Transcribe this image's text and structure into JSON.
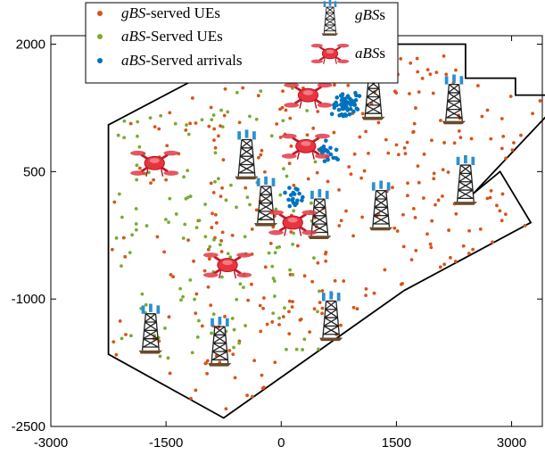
{
  "chart_data": {
    "type": "scatter",
    "title": "",
    "xlabel": "",
    "ylabel": "",
    "xlim": [
      -3000,
      3400
    ],
    "ylim": [
      -2500,
      2100
    ],
    "x_ticks": [
      -3000,
      -1500,
      0,
      1500,
      3000
    ],
    "y_ticks": [
      2000,
      500,
      -1000,
      -2500
    ],
    "tick_labels_x": [
      "-3000",
      "-1500",
      "0",
      "1500",
      "3000"
    ],
    "tick_labels_y": [
      "2000",
      "500",
      "-1000",
      "-2500"
    ],
    "grid": false,
    "legend_position": "top-left",
    "colors": {
      "gbs_served": "#d95319",
      "abs_served": "#77ac30",
      "abs_arrivals": "#0072bd",
      "region": "#000000"
    },
    "legend": [
      {
        "key": "gbs_ues",
        "prefix": "gBS",
        "suffix": "-served UEs",
        "marker": "dot",
        "color": "#d95319"
      },
      {
        "key": "abs_ues",
        "prefix": "aBS",
        "suffix": "-Served UEs",
        "marker": "dot",
        "color": "#77ac30"
      },
      {
        "key": "abs_arrivals",
        "prefix": "aBS",
        "suffix": "-Served arrivals",
        "marker": "dot",
        "color": "#0072bd"
      },
      {
        "key": "gbss",
        "prefix": "gBS",
        "suffix": "s",
        "marker": "tower-icon"
      },
      {
        "key": "abss",
        "prefix": "aBS",
        "suffix": "s",
        "marker": "drone-icon"
      }
    ],
    "region_polygon": [
      [
        -2250,
        1050
      ],
      [
        -1200,
        1550
      ],
      [
        -1050,
        2000
      ],
      [
        2400,
        2000
      ],
      [
        2400,
        1600
      ],
      [
        3050,
        1600
      ],
      [
        3050,
        1400
      ],
      [
        3450,
        1400
      ],
      [
        3450,
        1150
      ],
      [
        2500,
        240
      ],
      [
        2850,
        500
      ],
      [
        3250,
        -100
      ],
      [
        1600,
        -900
      ],
      [
        -750,
        -2400
      ],
      [
        -2250,
        -1650
      ]
    ],
    "gbs_towers": [
      [
        1200,
        1400
      ],
      [
        2250,
        1350
      ],
      [
        -450,
        700
      ],
      [
        -200,
        150
      ],
      [
        500,
        0
      ],
      [
        1300,
        100
      ],
      [
        2400,
        400
      ],
      [
        650,
        -1200
      ],
      [
        -1700,
        -1350
      ],
      [
        -800,
        -1500
      ]
    ],
    "abs_drones": [
      [
        350,
        1400
      ],
      [
        -1650,
        600
      ],
      [
        320,
        800
      ],
      [
        150,
        -100
      ],
      [
        -700,
        -600
      ]
    ],
    "n_gbs_ues": 330,
    "n_abs_ues": 150,
    "n_abs_arrivals": 90,
    "seed": 7
  }
}
